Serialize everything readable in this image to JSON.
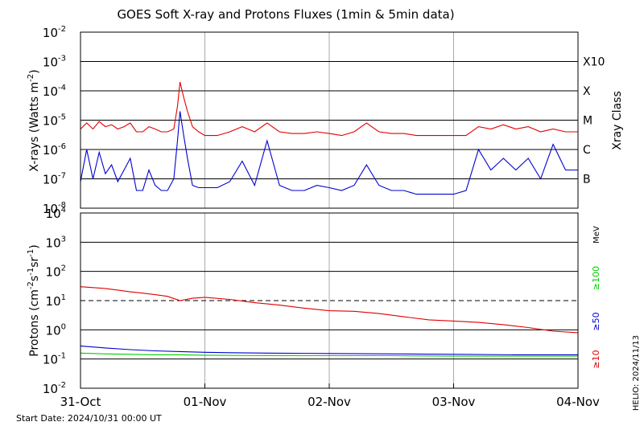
{
  "chart_data": [
    {
      "type": "line",
      "title": "GOES Soft X-ray and Protons Fluxes   (1min & 5min data)",
      "ylabel_parts": [
        "X-rays (Watts m",
        "-2",
        ")"
      ],
      "y_scale": "log",
      "ylim": [
        1e-08,
        0.01
      ],
      "y_ticks": [
        {
          "base": "10",
          "exp": "-8"
        },
        {
          "base": "10",
          "exp": "-7"
        },
        {
          "base": "10",
          "exp": "-6"
        },
        {
          "base": "10",
          "exp": "-5"
        },
        {
          "base": "10",
          "exp": "-4"
        },
        {
          "base": "10",
          "exp": "-3"
        },
        {
          "base": "10",
          "exp": "-2"
        }
      ],
      "right_axis_label": "Xray Class",
      "classes": [
        {
          "label": "B",
          "value": 1e-07
        },
        {
          "label": "C",
          "value": 1e-06
        },
        {
          "label": "M",
          "value": 1e-05
        },
        {
          "label": "X",
          "value": 0.0001
        },
        {
          "label": "X10",
          "value": 0.001
        }
      ],
      "xlim": [
        0,
        4
      ],
      "series": [
        {
          "color": "#e00000",
          "x": [
            0,
            0.05,
            0.1,
            0.15,
            0.2,
            0.25,
            0.3,
            0.35,
            0.4,
            0.45,
            0.5,
            0.55,
            0.6,
            0.65,
            0.7,
            0.75,
            0.78,
            0.8,
            0.83,
            0.86,
            0.9,
            0.95,
            1.0,
            1.1,
            1.2,
            1.3,
            1.4,
            1.5,
            1.6,
            1.7,
            1.8,
            1.9,
            2.0,
            2.1,
            2.2,
            2.3,
            2.4,
            2.5,
            2.6,
            2.7,
            2.8,
            2.9,
            3.0,
            3.1,
            3.2,
            3.3,
            3.4,
            3.5,
            3.6,
            3.7,
            3.8,
            3.9,
            4.0
          ],
          "y": [
            5e-06,
            8e-06,
            5e-06,
            9e-06,
            6e-06,
            7e-06,
            5e-06,
            6e-06,
            8e-06,
            4e-06,
            4e-06,
            6e-06,
            5e-06,
            4e-06,
            4e-06,
            5e-06,
            3e-05,
            0.0002,
            6e-05,
            2e-05,
            6e-06,
            4e-06,
            3e-06,
            3e-06,
            4e-06,
            6e-06,
            4e-06,
            8e-06,
            4e-06,
            3.5e-06,
            3.5e-06,
            4e-06,
            3.5e-06,
            3e-06,
            4e-06,
            8e-06,
            4e-06,
            3.5e-06,
            3.5e-06,
            3e-06,
            3e-06,
            3e-06,
            3e-06,
            3e-06,
            6e-06,
            5e-06,
            7e-06,
            5e-06,
            6e-06,
            4e-06,
            5e-06,
            4e-06,
            4e-06
          ]
        },
        {
          "color": "#0000d0",
          "x": [
            0,
            0.05,
            0.1,
            0.15,
            0.2,
            0.25,
            0.3,
            0.35,
            0.4,
            0.45,
            0.5,
            0.55,
            0.6,
            0.65,
            0.7,
            0.75,
            0.78,
            0.8,
            0.83,
            0.86,
            0.9,
            0.95,
            1.0,
            1.1,
            1.2,
            1.3,
            1.4,
            1.5,
            1.6,
            1.7,
            1.8,
            1.9,
            2.0,
            2.1,
            2.2,
            2.3,
            2.4,
            2.5,
            2.6,
            2.7,
            2.8,
            2.9,
            3.0,
            3.1,
            3.2,
            3.3,
            3.4,
            3.5,
            3.6,
            3.7,
            3.8,
            3.9,
            4.0
          ],
          "y": [
            8e-08,
            1e-06,
            1e-07,
            8e-07,
            1.5e-07,
            3e-07,
            8e-08,
            2e-07,
            5e-07,
            4e-08,
            4e-08,
            2e-07,
            6e-08,
            4e-08,
            4e-08,
            1e-07,
            2e-06,
            2e-05,
            3e-06,
            5e-07,
            6e-08,
            5e-08,
            5e-08,
            5e-08,
            8e-08,
            4e-07,
            6e-08,
            2e-06,
            6e-08,
            4e-08,
            4e-08,
            6e-08,
            5e-08,
            4e-08,
            6e-08,
            3e-07,
            6e-08,
            4e-08,
            4e-08,
            3e-08,
            3e-08,
            3e-08,
            3e-08,
            4e-08,
            1e-06,
            2e-07,
            5e-07,
            2e-07,
            5e-07,
            1e-07,
            1.5e-06,
            2e-07,
            2e-07
          ]
        }
      ]
    },
    {
      "type": "line",
      "ylabel_parts": [
        "Protons (cm",
        "-2",
        "s",
        "-1",
        "sr",
        "-1",
        ")"
      ],
      "y_scale": "log",
      "ylim": [
        0.01,
        10000
      ],
      "y_ticks": [
        {
          "base": "10",
          "exp": "-2"
        },
        {
          "base": "10",
          "exp": "-1"
        },
        {
          "base": "10",
          "exp": "0"
        },
        {
          "base": "10",
          "exp": "1"
        },
        {
          "base": "10",
          "exp": "2"
        },
        {
          "base": "10",
          "exp": "3"
        },
        {
          "base": "10",
          "exp": "4"
        }
      ],
      "y_tick_values": [
        0.01,
        0.1,
        1,
        10,
        100,
        1000,
        10000
      ],
      "threshold": 10,
      "unit": "MeV",
      "xlim": [
        0,
        4
      ],
      "series": [
        {
          "name": "≥10",
          "color": "#e00000",
          "x": [
            0,
            0.1,
            0.2,
            0.3,
            0.4,
            0.5,
            0.6,
            0.7,
            0.8,
            0.9,
            1.0,
            1.2,
            1.4,
            1.6,
            1.8,
            2.0,
            2.2,
            2.4,
            2.6,
            2.8,
            3.0,
            3.2,
            3.4,
            3.6,
            3.8,
            4.0
          ],
          "y": [
            30,
            28,
            26,
            23,
            20,
            18,
            16,
            14,
            10,
            12,
            13,
            11,
            8.5,
            7,
            5.5,
            4.5,
            4.3,
            3.6,
            2.8,
            2.2,
            2.0,
            1.8,
            1.5,
            1.2,
            0.9,
            0.8
          ]
        },
        {
          "name": "≥50",
          "color": "#0000d0",
          "x": [
            0,
            0.2,
            0.4,
            0.6,
            0.8,
            1.0,
            1.2,
            1.5,
            2.0,
            2.5,
            3.0,
            3.5,
            4.0
          ],
          "y": [
            0.28,
            0.24,
            0.21,
            0.19,
            0.18,
            0.17,
            0.165,
            0.16,
            0.155,
            0.15,
            0.145,
            0.14,
            0.14
          ]
        },
        {
          "name": "≥100",
          "color": "#00d000",
          "x": [
            0,
            0.2,
            0.4,
            0.6,
            0.8,
            1.0,
            1.5,
            2.0,
            2.5,
            3.0,
            3.5,
            4.0
          ],
          "y": [
            0.16,
            0.15,
            0.145,
            0.14,
            0.14,
            0.135,
            0.13,
            0.13,
            0.13,
            0.125,
            0.125,
            0.125
          ]
        }
      ]
    }
  ],
  "x_axis": {
    "ticks": [
      {
        "value": 0,
        "label": "31-Oct"
      },
      {
        "value": 1,
        "label": "01-Nov"
      },
      {
        "value": 2,
        "label": "02-Nov"
      },
      {
        "value": 3,
        "label": "03-Nov"
      },
      {
        "value": 4,
        "label": "04-Nov"
      }
    ]
  },
  "footer": {
    "start_date": "Start Date: 2024/10/31 00:00 UT",
    "credit": "HELIO: 2024/11/13"
  }
}
